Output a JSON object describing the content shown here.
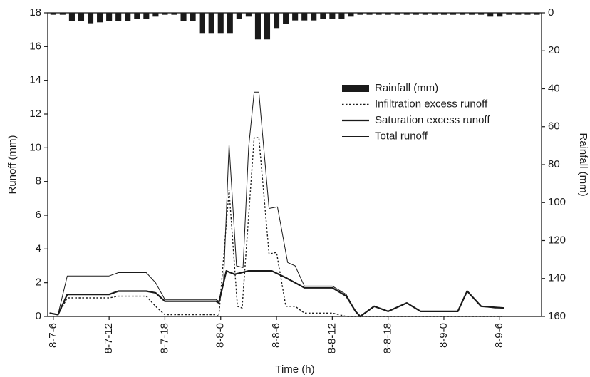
{
  "chart_data": {
    "type": "line",
    "x_label": "Time (h)",
    "y_label": "Runoff (mm)",
    "y2_label": "Rainfall (mm)",
    "xlim": [
      -0.6,
      52.5
    ],
    "xticks": [
      {
        "value": 0,
        "label": "8-7-6"
      },
      {
        "value": 6,
        "label": "8-7-12"
      },
      {
        "value": 12,
        "label": "8-7-18"
      },
      {
        "value": 18,
        "label": "8-8-0"
      },
      {
        "value": 24,
        "label": "8-8-6"
      },
      {
        "value": 30,
        "label": "8-8-12"
      },
      {
        "value": 36,
        "label": "8-8-18"
      },
      {
        "value": 42,
        "label": "8-9-0"
      },
      {
        "value": 48,
        "label": "8-9-6"
      }
    ],
    "ylim": [
      0,
      18
    ],
    "yticks": [
      0,
      2,
      4,
      6,
      8,
      10,
      12,
      14,
      16,
      18
    ],
    "y2lim": [
      160,
      0
    ],
    "y2ticks": [
      0,
      20,
      40,
      60,
      80,
      100,
      120,
      140,
      160
    ],
    "series": [
      {
        "name": "Rainfall (mm)",
        "style": "bar",
        "axis": "y2",
        "color": "#1a1a1a",
        "x": [
          0,
          1,
          2,
          3,
          4,
          5,
          6,
          7,
          8,
          9,
          10,
          11,
          12,
          13,
          14,
          15,
          16,
          17,
          18,
          19,
          20,
          21,
          22,
          23,
          24,
          25,
          26,
          27,
          28,
          29,
          30,
          31,
          32,
          33,
          34,
          35,
          36,
          37,
          38,
          39,
          40,
          41,
          42,
          43,
          44,
          45,
          46,
          47,
          48,
          49,
          50,
          51,
          52
        ],
        "values": [
          1,
          1,
          4.5,
          4.5,
          5.5,
          5,
          4.5,
          4.5,
          4.5,
          3,
          3,
          2,
          1,
          1,
          4.5,
          4.5,
          11,
          11,
          11,
          11,
          3,
          2,
          14,
          14,
          8,
          6,
          4,
          4,
          4,
          3,
          3,
          3,
          2,
          1,
          1,
          1,
          1,
          1,
          1,
          1,
          1,
          1,
          1,
          1,
          1,
          1,
          1,
          2,
          2,
          1,
          1,
          1,
          1
        ]
      },
      {
        "name": "Infiltration excess runoff",
        "style": "dotted",
        "color": "#1a1a1a",
        "x": [
          -0.4,
          0.5,
          1.5,
          6,
          7,
          10,
          11,
          12,
          17.5,
          17.8,
          18.9,
          19.8,
          20.3,
          21.6,
          22.1,
          23.2,
          24,
          25,
          26,
          27,
          30,
          31.5,
          48.5
        ],
        "values": [
          0.2,
          0.1,
          1.1,
          1.1,
          1.2,
          1.2,
          0.6,
          0.1,
          0.1,
          0,
          7.5,
          0.6,
          0.5,
          10.6,
          10.6,
          3.7,
          3.8,
          0.6,
          0.6,
          0.2,
          0.2,
          0,
          0
        ]
      },
      {
        "name": "Saturation excess runoff",
        "style": "thick",
        "color": "#1a1a1a",
        "x": [
          -0.4,
          0.5,
          1.5,
          6,
          7,
          10,
          11,
          12,
          17.5,
          17.8,
          18.6,
          19.5,
          21,
          23.5,
          25,
          26,
          27,
          30,
          31.5,
          32.5,
          33,
          34.5,
          36,
          38,
          39.5,
          43.5,
          44.5,
          46,
          48.5
        ],
        "values": [
          0.2,
          0.1,
          1.3,
          1.3,
          1.5,
          1.5,
          1.4,
          0.9,
          0.9,
          0.8,
          2.7,
          2.5,
          2.7,
          2.7,
          2.3,
          2,
          1.7,
          1.7,
          1.2,
          0.3,
          0,
          0.6,
          0.3,
          0.8,
          0.3,
          0.3,
          1.5,
          0.6,
          0.5
        ]
      },
      {
        "name": "Total runoff",
        "style": "thin",
        "color": "#1a1a1a",
        "x": [
          -0.4,
          0.5,
          1.5,
          6,
          7,
          10,
          11,
          12,
          17.5,
          17.8,
          18.3,
          18.9,
          19.7,
          20.4,
          21,
          21.6,
          22.1,
          23.2,
          24.1,
          25.2,
          26,
          27,
          30,
          31.5,
          32.5,
          33,
          34.5,
          36,
          38,
          39.5,
          43.5,
          44.5,
          46,
          47.5,
          48.5
        ],
        "values": [
          0.2,
          0.1,
          2.4,
          2.4,
          2.6,
          2.6,
          2,
          1,
          1,
          0.9,
          2,
          10.2,
          3,
          2.9,
          10,
          13.3,
          13.3,
          6.4,
          6.5,
          3.2,
          3,
          1.8,
          1.8,
          1.3,
          0.3,
          0,
          0.6,
          0.3,
          0.8,
          0.3,
          0.3,
          1.5,
          0.6,
          0.5,
          0.5
        ]
      }
    ]
  }
}
